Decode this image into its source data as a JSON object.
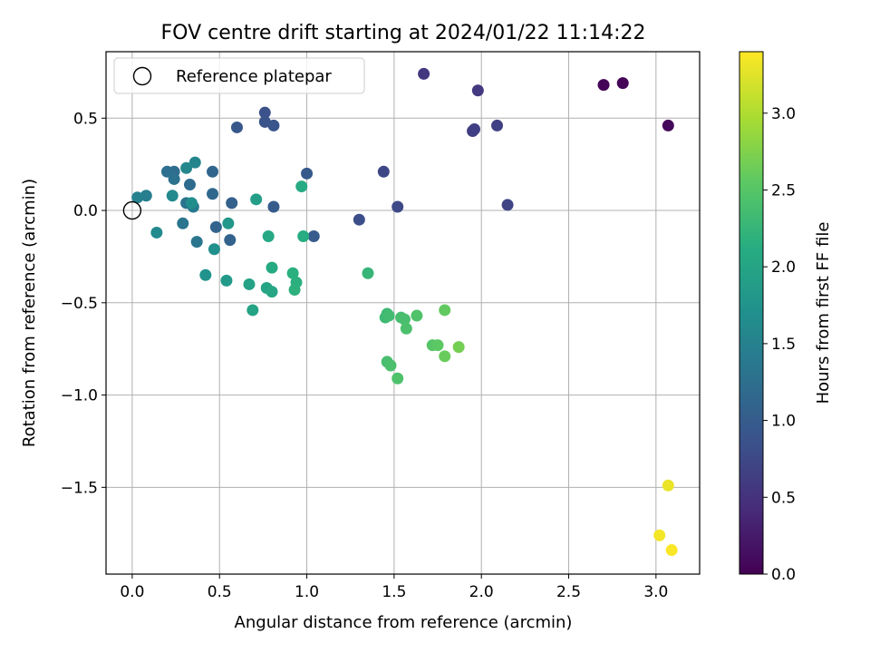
{
  "chart_data": {
    "type": "scatter",
    "title": "FOV centre drift starting at 2024/01/22 11:14:22",
    "xlabel": "Angular distance from reference (arcmin)",
    "ylabel": "Rotation from reference (arcmin)",
    "xlim": [
      -0.15,
      3.25
    ],
    "ylim": [
      -1.97,
      0.86
    ],
    "x_ticks": [
      0.0,
      0.5,
      1.0,
      1.5,
      2.0,
      2.5,
      3.0
    ],
    "x_tick_labels": [
      "0.0",
      "0.5",
      "1.0",
      "1.5",
      "2.0",
      "2.5",
      "3.0"
    ],
    "y_ticks": [
      0.5,
      0.0,
      -0.5,
      -1.0,
      -1.5
    ],
    "y_tick_labels": [
      "0.5",
      "0.0",
      "−0.5",
      "−1.0",
      "−1.5"
    ],
    "grid": true,
    "legend": {
      "position": "top-left",
      "entries": [
        {
          "label": "Reference platepar",
          "marker": "open-circle"
        }
      ]
    },
    "reference_point": {
      "x": 0.0,
      "y": 0.0
    },
    "colorbar": {
      "label": "Hours from first FF file",
      "colormap": "viridis",
      "range": [
        0.0,
        3.4
      ],
      "ticks": [
        0.0,
        0.5,
        1.0,
        1.5,
        2.0,
        2.5,
        3.0
      ],
      "tick_labels": [
        "0.0",
        "0.5",
        "1.0",
        "1.5",
        "2.0",
        "2.5",
        "3.0"
      ]
    },
    "points": [
      {
        "x": 2.7,
        "y": 0.68,
        "c": 0.02
      },
      {
        "x": 2.81,
        "y": 0.69,
        "c": 0.04
      },
      {
        "x": 3.07,
        "y": 0.46,
        "c": 0.08
      },
      {
        "x": 1.67,
        "y": 0.74,
        "c": 0.55
      },
      {
        "x": 1.98,
        "y": 0.65,
        "c": 0.58
      },
      {
        "x": 1.95,
        "y": 0.43,
        "c": 0.62
      },
      {
        "x": 1.96,
        "y": 0.44,
        "c": 0.64
      },
      {
        "x": 2.09,
        "y": 0.46,
        "c": 0.67
      },
      {
        "x": 2.15,
        "y": 0.03,
        "c": 0.7
      },
      {
        "x": 1.44,
        "y": 0.21,
        "c": 0.73
      },
      {
        "x": 1.52,
        "y": 0.02,
        "c": 0.76
      },
      {
        "x": 1.3,
        "y": -0.05,
        "c": 0.82
      },
      {
        "x": 0.76,
        "y": 0.53,
        "c": 0.86
      },
      {
        "x": 0.76,
        "y": 0.48,
        "c": 0.88
      },
      {
        "x": 0.81,
        "y": 0.46,
        "c": 0.9
      },
      {
        "x": 0.6,
        "y": 0.45,
        "c": 0.94
      },
      {
        "x": 1.0,
        "y": 0.2,
        "c": 0.96
      },
      {
        "x": 1.04,
        "y": -0.14,
        "c": 0.98
      },
      {
        "x": 0.81,
        "y": 0.02,
        "c": 1.0
      },
      {
        "x": 0.57,
        "y": 0.04,
        "c": 1.05
      },
      {
        "x": 0.56,
        "y": -0.16,
        "c": 1.08
      },
      {
        "x": 0.48,
        "y": -0.09,
        "c": 1.1
      },
      {
        "x": 0.46,
        "y": 0.21,
        "c": 1.12
      },
      {
        "x": 0.46,
        "y": 0.09,
        "c": 1.16
      },
      {
        "x": 0.33,
        "y": 0.14,
        "c": 1.2
      },
      {
        "x": 0.24,
        "y": 0.21,
        "c": 1.22
      },
      {
        "x": 0.2,
        "y": 0.21,
        "c": 1.25
      },
      {
        "x": 0.24,
        "y": 0.17,
        "c": 1.28
      },
      {
        "x": 0.31,
        "y": 0.04,
        "c": 1.3
      },
      {
        "x": 0.29,
        "y": -0.07,
        "c": 1.33
      },
      {
        "x": 0.37,
        "y": -0.17,
        "c": 1.35
      },
      {
        "x": 0.35,
        "y": 0.02,
        "c": 1.4
      },
      {
        "x": 0.08,
        "y": 0.08,
        "c": 1.45
      },
      {
        "x": 0.03,
        "y": 0.07,
        "c": 1.48
      },
      {
        "x": 0.36,
        "y": 0.26,
        "c": 1.55
      },
      {
        "x": 0.31,
        "y": 0.23,
        "c": 1.58
      },
      {
        "x": 0.23,
        "y": 0.08,
        "c": 1.6
      },
      {
        "x": 0.14,
        "y": -0.12,
        "c": 1.62
      },
      {
        "x": 0.34,
        "y": 0.04,
        "c": 1.66
      },
      {
        "x": 0.47,
        "y": -0.21,
        "c": 1.7
      },
      {
        "x": 0.42,
        "y": -0.35,
        "c": 1.73
      },
      {
        "x": 0.55,
        "y": -0.07,
        "c": 1.8
      },
      {
        "x": 0.54,
        "y": -0.38,
        "c": 1.85
      },
      {
        "x": 0.71,
        "y": 0.06,
        "c": 1.9
      },
      {
        "x": 0.67,
        "y": -0.4,
        "c": 1.95
      },
      {
        "x": 0.69,
        "y": -0.54,
        "c": 1.98
      },
      {
        "x": 0.77,
        "y": -0.42,
        "c": 2.0
      },
      {
        "x": 0.8,
        "y": -0.44,
        "c": 2.02
      },
      {
        "x": 0.78,
        "y": -0.14,
        "c": 2.05
      },
      {
        "x": 0.8,
        "y": -0.31,
        "c": 2.08
      },
      {
        "x": 0.97,
        "y": 0.13,
        "c": 2.1
      },
      {
        "x": 0.98,
        "y": -0.14,
        "c": 2.12
      },
      {
        "x": 0.92,
        "y": -0.34,
        "c": 2.15
      },
      {
        "x": 0.94,
        "y": -0.39,
        "c": 2.16
      },
      {
        "x": 0.93,
        "y": -0.43,
        "c": 2.18
      },
      {
        "x": 1.35,
        "y": -0.34,
        "c": 2.25
      },
      {
        "x": 1.46,
        "y": -0.56,
        "c": 2.3
      },
      {
        "x": 1.45,
        "y": -0.58,
        "c": 2.32
      },
      {
        "x": 1.47,
        "y": -0.57,
        "c": 2.35
      },
      {
        "x": 1.54,
        "y": -0.58,
        "c": 2.38
      },
      {
        "x": 1.56,
        "y": -0.59,
        "c": 2.4
      },
      {
        "x": 1.57,
        "y": -0.64,
        "c": 2.42
      },
      {
        "x": 1.63,
        "y": -0.57,
        "c": 2.45
      },
      {
        "x": 1.46,
        "y": -0.82,
        "c": 2.4
      },
      {
        "x": 1.48,
        "y": -0.84,
        "c": 2.42
      },
      {
        "x": 1.52,
        "y": -0.91,
        "c": 2.44
      },
      {
        "x": 1.72,
        "y": -0.73,
        "c": 2.5
      },
      {
        "x": 1.75,
        "y": -0.73,
        "c": 2.55
      },
      {
        "x": 1.79,
        "y": -0.54,
        "c": 2.58
      },
      {
        "x": 1.79,
        "y": -0.79,
        "c": 2.62
      },
      {
        "x": 1.87,
        "y": -0.74,
        "c": 2.68
      },
      {
        "x": 3.07,
        "y": -1.49,
        "c": 3.3
      },
      {
        "x": 3.02,
        "y": -1.76,
        "c": 3.35
      },
      {
        "x": 3.09,
        "y": -1.84,
        "c": 3.38
      }
    ]
  }
}
